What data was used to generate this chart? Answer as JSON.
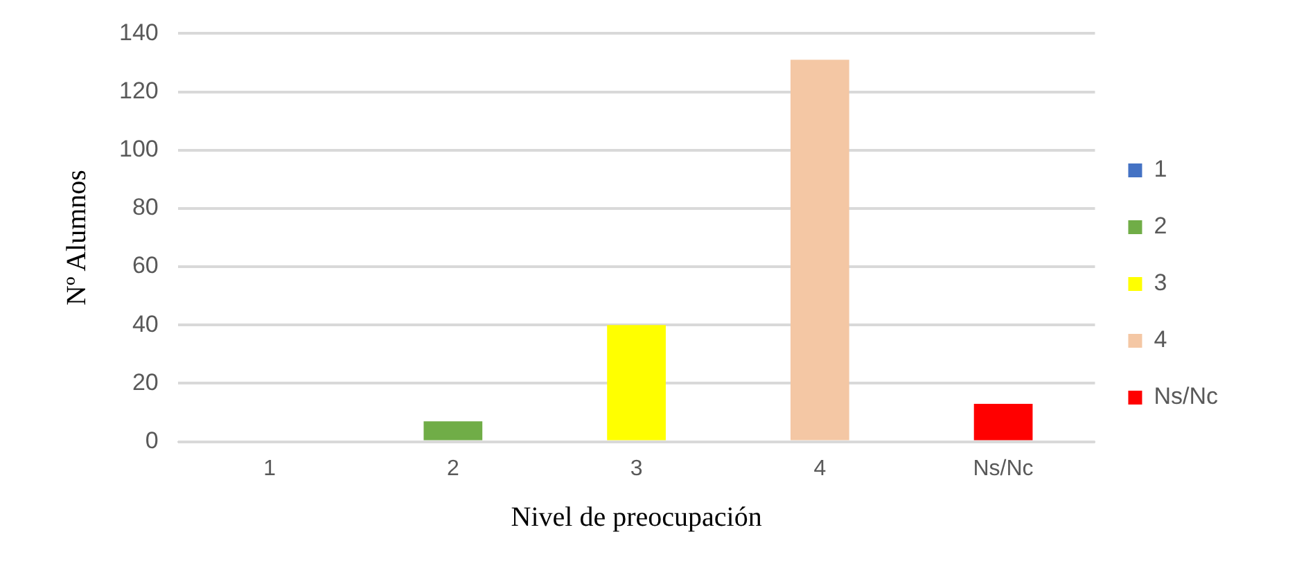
{
  "chart_data": {
    "type": "bar",
    "xlabel": "Nivel de preocupación",
    "ylabel": "Nº Alumnos",
    "categories": [
      "1",
      "2",
      "3",
      "4",
      "Ns/Nc"
    ],
    "series": [
      {
        "name": "1",
        "color": "#4472c4",
        "values": [
          0,
          null,
          null,
          null,
          null
        ]
      },
      {
        "name": "2",
        "color": "#70ad47",
        "values": [
          null,
          7,
          null,
          null,
          null
        ]
      },
      {
        "name": "3",
        "color": "#ffff00",
        "values": [
          null,
          null,
          40,
          null,
          null
        ]
      },
      {
        "name": "4",
        "color": "#f4c7a4",
        "values": [
          null,
          null,
          null,
          131,
          null
        ]
      },
      {
        "name": "Ns/Nc",
        "color": "#ff0000",
        "values": [
          null,
          null,
          null,
          null,
          13
        ]
      }
    ],
    "stacked": true,
    "ylim": [
      0,
      140
    ],
    "yticks": [
      0,
      20,
      40,
      60,
      80,
      100,
      120,
      140
    ],
    "grid": "y",
    "legend": "right"
  }
}
